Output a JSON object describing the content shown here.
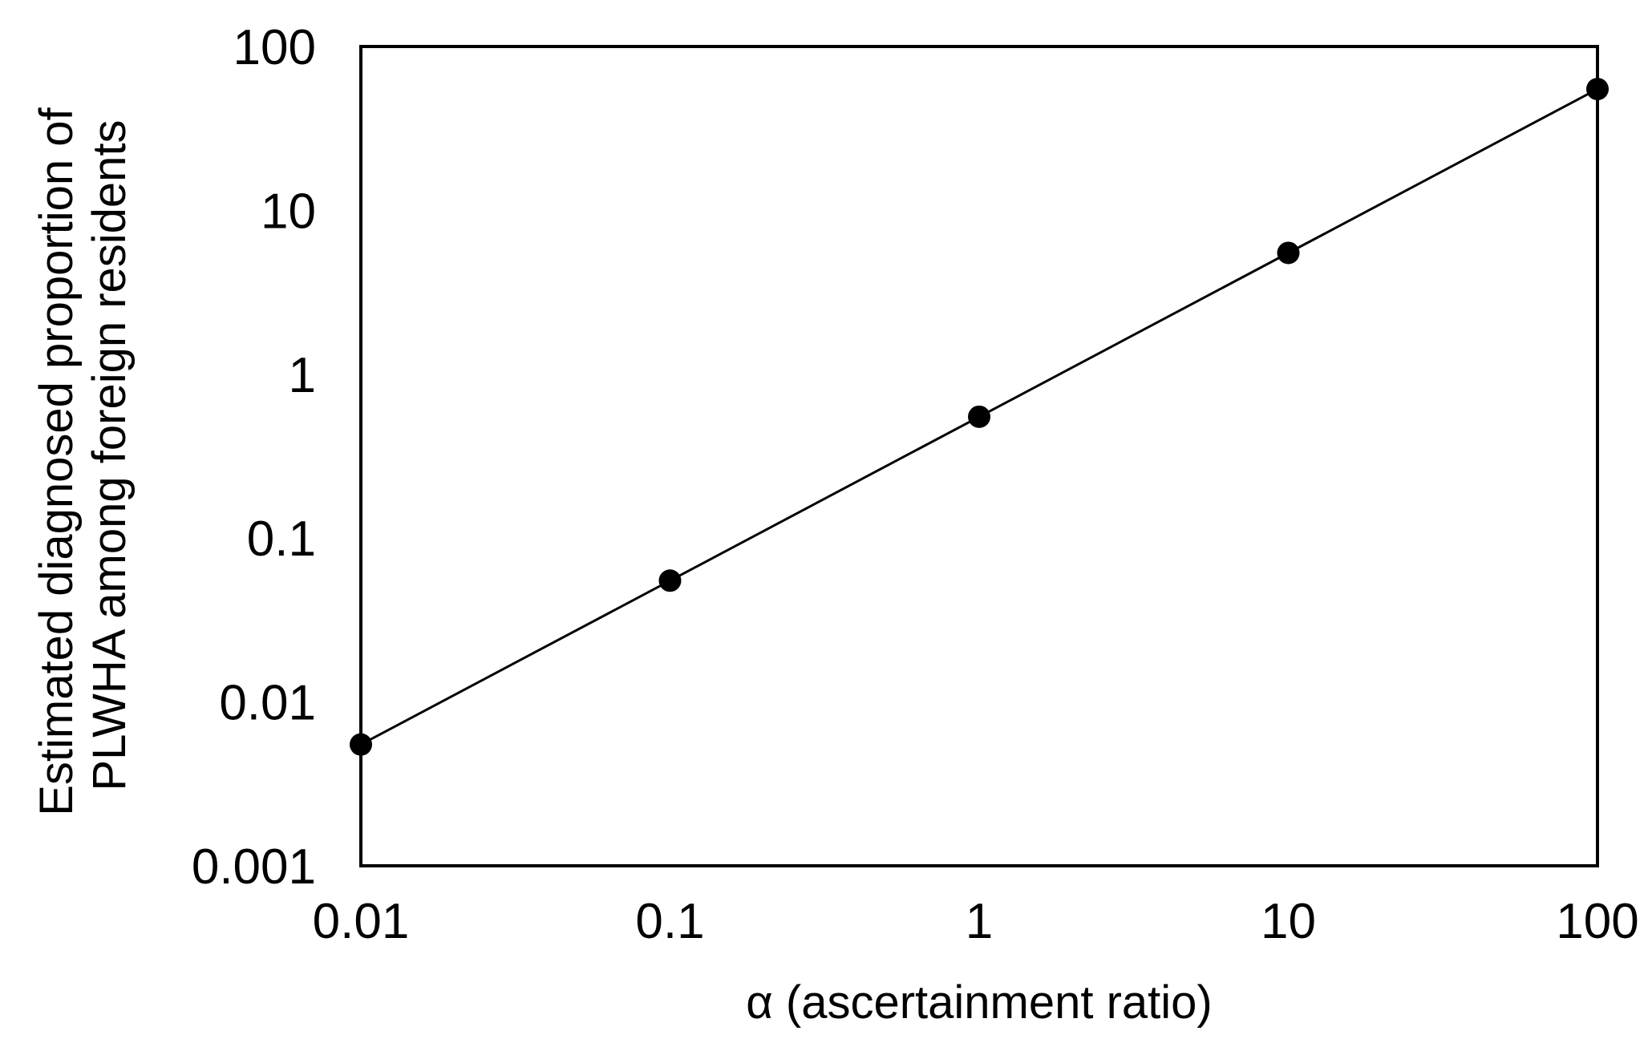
{
  "chart_data": {
    "type": "line",
    "xlabel": "α (ascertainment ratio)",
    "ylabel_lines": [
      "Estimated diagnosed proportion of",
      "PLWHA among foreign residents"
    ],
    "x_scale": "log",
    "y_scale": "log",
    "xlim": [
      0.01,
      100
    ],
    "ylim": [
      0.001,
      100
    ],
    "x_ticks": [
      "0.01",
      "0.1",
      "1",
      "10",
      "100"
    ],
    "y_ticks": [
      "0.001",
      "0.01",
      "0.1",
      "1",
      "10",
      "100"
    ],
    "x_tick_values": [
      0.01,
      0.1,
      1,
      10,
      100
    ],
    "y_tick_values": [
      0.001,
      0.01,
      0.1,
      1,
      10,
      100
    ],
    "grid": false,
    "series": [
      {
        "x": [
          0.01,
          0.1,
          1,
          10,
          100
        ],
        "y": [
          0.0055,
          0.055,
          0.55,
          5.5,
          55
        ],
        "marker": "circle",
        "color": "#000000"
      }
    ]
  }
}
